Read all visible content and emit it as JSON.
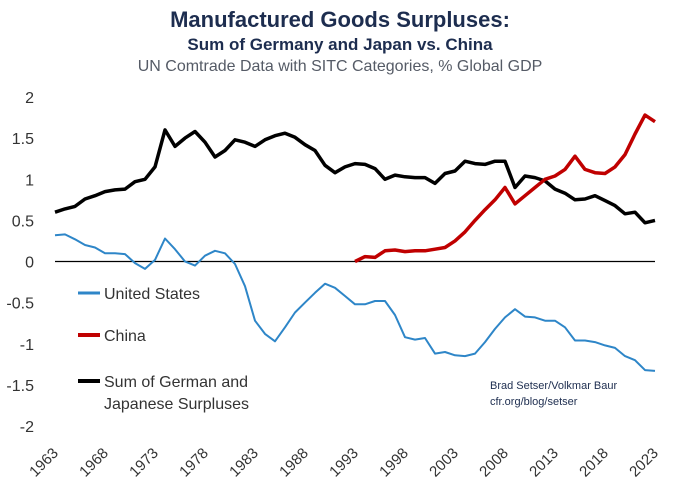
{
  "title": "Manufactured Goods Surpluses:",
  "subtitle": "Sum of Germany and Japan vs. China",
  "subtitle2": "UN Comtrade Data with SITC Categories, % Global GDP",
  "legend": {
    "us": "United States",
    "china": "China",
    "gj_line1": "Sum of German and",
    "gj_line2": "Japanese Surpluses"
  },
  "source": {
    "line1": "Brad Setser/Volkmar Baur",
    "line2": "cfr.org/blog/setser"
  },
  "colors": {
    "us": "#2e86c8",
    "china": "#c00000",
    "gj": "#000000"
  },
  "chart_data": {
    "type": "line",
    "ylim": [
      -2,
      2
    ],
    "y_ticks": [
      "2",
      "1.5",
      "1",
      "0.5",
      "0",
      "-0.5",
      "-1",
      "-1.5",
      "-2"
    ],
    "x_ticks": [
      "1963",
      "1968",
      "1973",
      "1978",
      "1983",
      "1988",
      "1993",
      "1998",
      "2003",
      "2008",
      "2013",
      "2018",
      "2023"
    ],
    "xlim": [
      1963,
      2023
    ],
    "series": [
      {
        "name": "Sum of German and Japanese Surpluses",
        "color_key": "gj",
        "x": [
          1963,
          1964,
          1965,
          1966,
          1967,
          1968,
          1969,
          1970,
          1971,
          1972,
          1973,
          1974,
          1975,
          1976,
          1977,
          1978,
          1979,
          1980,
          1981,
          1982,
          1983,
          1984,
          1985,
          1986,
          1987,
          1988,
          1989,
          1990,
          1991,
          1992,
          1993,
          1994,
          1995,
          1996,
          1997,
          1998,
          1999,
          2000,
          2001,
          2002,
          2003,
          2004,
          2005,
          2006,
          2007,
          2008,
          2009,
          2010,
          2011,
          2012,
          2013,
          2014,
          2015,
          2016,
          2017,
          2018,
          2019,
          2020,
          2021,
          2022,
          2023
        ],
        "y": [
          0.6,
          0.64,
          0.67,
          0.76,
          0.8,
          0.85,
          0.87,
          0.88,
          0.97,
          1.0,
          1.15,
          1.6,
          1.4,
          1.5,
          1.58,
          1.45,
          1.27,
          1.35,
          1.48,
          1.45,
          1.4,
          1.48,
          1.53,
          1.56,
          1.51,
          1.42,
          1.35,
          1.17,
          1.08,
          1.15,
          1.19,
          1.18,
          1.13,
          1.0,
          1.05,
          1.03,
          1.02,
          1.02,
          0.95,
          1.07,
          1.1,
          1.22,
          1.19,
          1.18,
          1.22,
          1.22,
          0.9,
          1.04,
          1.02,
          0.98,
          0.88,
          0.83,
          0.75,
          0.76,
          0.8,
          0.74,
          0.68,
          0.58,
          0.6,
          0.47,
          0.5
        ]
      },
      {
        "name": "China",
        "color_key": "china",
        "x": [
          1993,
          1994,
          1995,
          1996,
          1997,
          1998,
          1999,
          2000,
          2001,
          2002,
          2003,
          2004,
          2005,
          2006,
          2007,
          2008,
          2009,
          2010,
          2011,
          2012,
          2013,
          2014,
          2015,
          2016,
          2017,
          2018,
          2019,
          2020,
          2021,
          2022,
          2023
        ],
        "y": [
          0.0,
          0.06,
          0.05,
          0.13,
          0.14,
          0.12,
          0.13,
          0.13,
          0.15,
          0.17,
          0.25,
          0.36,
          0.5,
          0.63,
          0.75,
          0.9,
          0.7,
          0.8,
          0.9,
          1.0,
          1.04,
          1.12,
          1.28,
          1.12,
          1.08,
          1.07,
          1.15,
          1.3,
          1.55,
          1.78,
          1.7
        ]
      },
      {
        "name": "United States",
        "color_key": "us",
        "x": [
          1963,
          1964,
          1965,
          1966,
          1967,
          1968,
          1969,
          1970,
          1971,
          1972,
          1973,
          1974,
          1975,
          1976,
          1977,
          1978,
          1979,
          1980,
          1981,
          1982,
          1983,
          1984,
          1985,
          1986,
          1987,
          1988,
          1989,
          1990,
          1991,
          1992,
          1993,
          1994,
          1995,
          1996,
          1997,
          1998,
          1999,
          2000,
          2001,
          2002,
          2003,
          2004,
          2005,
          2006,
          2007,
          2008,
          2009,
          2010,
          2011,
          2012,
          2013,
          2014,
          2015,
          2016,
          2017,
          2018,
          2019,
          2020,
          2021,
          2022,
          2023
        ],
        "y": [
          0.32,
          0.33,
          0.27,
          0.2,
          0.17,
          0.1,
          0.1,
          0.09,
          -0.02,
          -0.09,
          0.02,
          0.28,
          0.15,
          0.0,
          -0.05,
          0.07,
          0.13,
          0.1,
          -0.03,
          -0.3,
          -0.72,
          -0.88,
          -0.97,
          -0.8,
          -0.62,
          -0.5,
          -0.38,
          -0.27,
          -0.32,
          -0.42,
          -0.52,
          -0.52,
          -0.48,
          -0.48,
          -0.65,
          -0.92,
          -0.95,
          -0.93,
          -1.12,
          -1.1,
          -1.14,
          -1.15,
          -1.12,
          -0.98,
          -0.82,
          -0.68,
          -0.58,
          -0.67,
          -0.68,
          -0.72,
          -0.72,
          -0.8,
          -0.96,
          -0.96,
          -0.98,
          -1.02,
          -1.05,
          -1.15,
          -1.2,
          -1.32,
          -1.33
        ]
      }
    ]
  }
}
